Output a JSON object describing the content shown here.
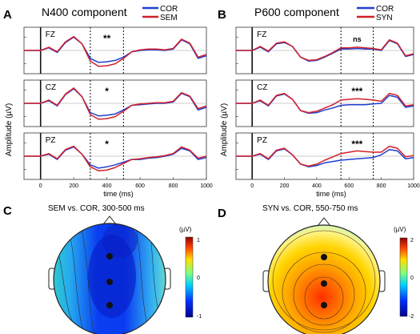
{
  "panels": {
    "A": {
      "letter": "A",
      "title": "N400 component",
      "legend": [
        {
          "name": "COR",
          "color": "#1f3fcf"
        },
        {
          "name": "SEM",
          "color": "#d2202a"
        }
      ],
      "ylabel": "Amplitude (µV)",
      "xlabel": "time (ms)",
      "xticks": [
        "0",
        "200",
        "400",
        "600",
        "800",
        "1000"
      ],
      "window_ms": [
        300,
        500
      ],
      "rows": [
        {
          "channel": "FZ",
          "sig": "**"
        },
        {
          "channel": "CZ",
          "sig": "*"
        },
        {
          "channel": "PZ",
          "sig": "*"
        }
      ]
    },
    "B": {
      "letter": "B",
      "title": "P600 component",
      "legend": [
        {
          "name": "COR",
          "color": "#1f3fcf"
        },
        {
          "name": "SYN",
          "color": "#d2202a"
        }
      ],
      "ylabel": "Amplitude (µV)",
      "xlabel": "time (ms)",
      "xticks": [
        "0",
        "200",
        "400",
        "600",
        "800",
        "1000"
      ],
      "window_ms": [
        550,
        750
      ],
      "rows": [
        {
          "channel": "FZ",
          "sig": "ns"
        },
        {
          "channel": "CZ",
          "sig": "***"
        },
        {
          "channel": "PZ",
          "sig": "***"
        }
      ]
    },
    "C": {
      "letter": "C",
      "title": "SEM vs. COR, 300-500 ms",
      "unit": "(µV)",
      "scale": [
        "1",
        "0",
        "-1"
      ],
      "electrodes": [
        "FZ",
        "CZ",
        "PZ"
      ]
    },
    "D": {
      "letter": "D",
      "title": "SYN vs. COR, 550-750 ms",
      "unit": "(µV)",
      "scale": [
        "2",
        "0",
        "-2"
      ],
      "electrodes": [
        "FZ",
        "CZ",
        "PZ"
      ]
    }
  },
  "colors": {
    "cor": "#1f3fcf",
    "cond": "#d2202a"
  },
  "chart_data": [
    {
      "type": "line",
      "title": "N400 component",
      "xlabel": "time (ms)",
      "ylabel": "Amplitude (µV)",
      "xlim": [
        -100,
        1000
      ],
      "x": [
        -100,
        0,
        50,
        100,
        150,
        200,
        250,
        300,
        350,
        400,
        450,
        500,
        550,
        600,
        650,
        700,
        750,
        800,
        850,
        900,
        950,
        1000
      ],
      "channels": [
        {
          "channel": "FZ",
          "series": [
            {
              "name": "COR",
              "values": [
                0.0,
                0.0,
                0.4,
                -0.3,
                1.2,
                2.0,
                1.0,
                -1.2,
                -1.8,
                -1.7,
                -1.5,
                -1.0,
                -0.2,
                0.0,
                0.1,
                0.1,
                0.0,
                0.2,
                1.6,
                1.0,
                -1.2,
                -0.8
              ]
            },
            {
              "name": "SEM",
              "values": [
                0.0,
                0.0,
                0.5,
                -0.2,
                1.3,
                2.1,
                1.0,
                -1.6,
                -2.4,
                -2.3,
                -2.0,
                -1.2,
                -0.2,
                0.1,
                0.2,
                0.2,
                0.1,
                0.3,
                1.7,
                1.1,
                -1.0,
                -0.6
              ]
            }
          ]
        },
        {
          "channel": "CZ",
          "series": [
            {
              "name": "COR",
              "values": [
                0.0,
                0.0,
                0.4,
                -0.4,
                1.3,
                2.2,
                1.0,
                -1.4,
                -1.9,
                -1.8,
                -1.6,
                -1.0,
                -0.3,
                -0.2,
                -0.1,
                0.0,
                0.0,
                0.2,
                1.5,
                1.0,
                -1.0,
                -0.6
              ]
            },
            {
              "name": "SEM",
              "values": [
                0.0,
                0.0,
                0.5,
                -0.3,
                1.4,
                2.3,
                1.0,
                -1.7,
                -2.4,
                -2.3,
                -2.0,
                -1.2,
                -0.3,
                -0.1,
                0.0,
                0.1,
                0.1,
                0.3,
                1.6,
                1.1,
                -0.8,
                -0.4
              ]
            }
          ]
        },
        {
          "channel": "PZ",
          "series": [
            {
              "name": "COR",
              "values": [
                0.0,
                0.0,
                0.3,
                -0.5,
                0.9,
                1.4,
                0.3,
                -1.3,
                -1.8,
                -1.6,
                -1.3,
                -0.9,
                -0.5,
                -0.5,
                -0.3,
                -0.2,
                0.0,
                0.3,
                1.2,
                0.8,
                -0.5,
                -0.2
              ]
            },
            {
              "name": "SEM",
              "values": [
                0.0,
                0.0,
                0.4,
                -0.4,
                1.0,
                1.5,
                0.3,
                -1.6,
                -2.2,
                -2.1,
                -1.7,
                -1.1,
                -0.5,
                -0.4,
                -0.2,
                -0.1,
                0.1,
                0.4,
                1.4,
                0.9,
                -0.3,
                0.0
              ]
            }
          ]
        }
      ]
    },
    {
      "type": "line",
      "title": "P600 component",
      "xlabel": "time (ms)",
      "ylabel": "Amplitude (µV)",
      "xlim": [
        -100,
        1000
      ],
      "x": [
        -100,
        0,
        50,
        100,
        150,
        200,
        250,
        300,
        350,
        400,
        450,
        500,
        550,
        600,
        650,
        700,
        750,
        800,
        850,
        900,
        950,
        1000
      ],
      "channels": [
        {
          "channel": "FZ",
          "series": [
            {
              "name": "COR",
              "values": [
                0.0,
                0.0,
                0.5,
                -0.2,
                1.0,
                1.2,
                0.6,
                -1.0,
                -1.6,
                -1.5,
                -1.0,
                -0.4,
                0.2,
                0.2,
                0.3,
                0.2,
                0.2,
                0.0,
                1.5,
                1.0,
                -0.9,
                -0.6
              ]
            },
            {
              "name": "SYN",
              "values": [
                0.0,
                0.0,
                0.6,
                -0.1,
                1.1,
                1.3,
                0.6,
                -1.0,
                -1.5,
                -1.4,
                -0.9,
                -0.3,
                0.4,
                0.4,
                0.5,
                0.4,
                0.3,
                0.1,
                1.6,
                1.1,
                -0.8,
                -0.5
              ]
            }
          ]
        },
        {
          "channel": "CZ",
          "series": [
            {
              "name": "COR",
              "values": [
                0.0,
                0.0,
                0.4,
                -0.4,
                1.1,
                1.4,
                0.6,
                -1.1,
                -1.5,
                -1.4,
                -1.0,
                -0.7,
                -0.3,
                -0.2,
                -0.2,
                -0.2,
                -0.1,
                0.0,
                1.2,
                0.9,
                -0.6,
                -0.4
              ]
            },
            {
              "name": "SYN",
              "values": [
                0.0,
                0.0,
                0.5,
                -0.3,
                1.2,
                1.5,
                0.6,
                -1.1,
                -1.4,
                -1.2,
                -0.7,
                -0.2,
                0.5,
                0.6,
                0.7,
                0.6,
                0.5,
                0.3,
                1.5,
                1.2,
                -0.4,
                -0.2
              ]
            }
          ]
        },
        {
          "channel": "PZ",
          "series": [
            {
              "name": "COR",
              "values": [
                0.0,
                0.0,
                0.3,
                -0.5,
                0.8,
                1.1,
                0.2,
                -1.2,
                -1.6,
                -1.4,
                -1.0,
                -0.8,
                -0.6,
                -0.5,
                -0.4,
                -0.3,
                -0.2,
                0.2,
                1.0,
                0.8,
                -0.4,
                -0.2
              ]
            },
            {
              "name": "SYN",
              "values": [
                0.0,
                0.0,
                0.4,
                -0.4,
                0.9,
                1.2,
                0.2,
                -1.2,
                -1.5,
                -1.2,
                -0.6,
                -0.1,
                0.4,
                0.6,
                0.8,
                0.7,
                0.6,
                0.6,
                1.5,
                1.2,
                -0.1,
                0.1
              ]
            }
          ]
        }
      ]
    },
    {
      "type": "heatmap",
      "title": "SEM vs. COR, 300-500 ms",
      "unit": "(µV)",
      "range": [
        -1,
        1
      ],
      "note": "topographic map, negative central-posterior maximum"
    },
    {
      "type": "heatmap",
      "title": "SYN vs. COR, 550-750 ms",
      "unit": "(µV)",
      "range": [
        -2,
        2
      ],
      "note": "topographic map, positive central-posterior maximum"
    }
  ]
}
